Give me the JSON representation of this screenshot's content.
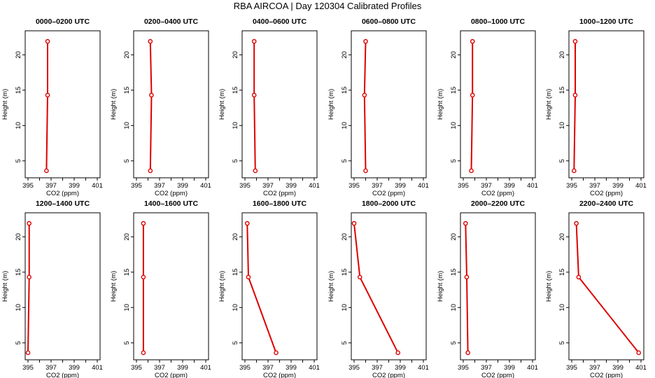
{
  "title": "RBA AIRCOA |  Day 120304  Calibrated Profiles",
  "colors": {
    "series": "#dd0000",
    "axis": "#000000"
  },
  "chart_data": [
    {
      "type": "line",
      "title": "0000–0200 UTC",
      "xlabel": "CO2 (ppm)",
      "ylabel": "Height (m)",
      "xlim": [
        395,
        401
      ],
      "ylim": [
        3,
        23
      ],
      "xticks": [
        395,
        397,
        399,
        401
      ],
      "yticks": [
        5,
        10,
        15,
        20
      ],
      "x": [
        396.6,
        396.7,
        396.7
      ],
      "y": [
        3.6,
        14.3,
        21.9
      ]
    },
    {
      "type": "line",
      "title": "0200–0400 UTC",
      "xlabel": "CO2 (ppm)",
      "ylabel": "Height (m)",
      "xlim": [
        395,
        401
      ],
      "ylim": [
        3,
        23
      ],
      "xticks": [
        395,
        397,
        399,
        401
      ],
      "yticks": [
        5,
        10,
        15,
        20
      ],
      "x": [
        396.2,
        396.3,
        396.2
      ],
      "y": [
        3.6,
        14.3,
        21.9
      ]
    },
    {
      "type": "line",
      "title": "0400–0600 UTC",
      "xlabel": "CO2 (ppm)",
      "ylabel": "Height (m)",
      "xlim": [
        395,
        401
      ],
      "ylim": [
        3,
        23
      ],
      "xticks": [
        395,
        397,
        399,
        401
      ],
      "yticks": [
        5,
        10,
        15,
        20
      ],
      "x": [
        395.9,
        395.8,
        395.8
      ],
      "y": [
        3.6,
        14.3,
        21.9
      ]
    },
    {
      "type": "line",
      "title": "0600–0800 UTC",
      "xlabel": "CO2 (ppm)",
      "ylabel": "Height (m)",
      "xlim": [
        395,
        401
      ],
      "ylim": [
        3,
        23
      ],
      "xticks": [
        395,
        397,
        399,
        401
      ],
      "yticks": [
        5,
        10,
        15,
        20
      ],
      "x": [
        396.0,
        395.9,
        396.0
      ],
      "y": [
        3.6,
        14.3,
        21.9
      ]
    },
    {
      "type": "line",
      "title": "0800–1000 UTC",
      "xlabel": "CO2 (ppm)",
      "ylabel": "Height (m)",
      "xlim": [
        395,
        401
      ],
      "ylim": [
        3,
        23
      ],
      "xticks": [
        395,
        397,
        399,
        401
      ],
      "yticks": [
        5,
        10,
        15,
        20
      ],
      "x": [
        395.7,
        395.8,
        395.8
      ],
      "y": [
        3.6,
        14.3,
        21.9
      ]
    },
    {
      "type": "line",
      "title": "1000–1200 UTC",
      "xlabel": "CO2 (ppm)",
      "ylabel": "Height (m)",
      "xlim": [
        395,
        401
      ],
      "ylim": [
        3,
        23
      ],
      "xticks": [
        395,
        397,
        399,
        401
      ],
      "yticks": [
        5,
        10,
        15,
        20
      ],
      "x": [
        395.2,
        395.3,
        395.3
      ],
      "y": [
        3.6,
        14.3,
        21.9
      ]
    },
    {
      "type": "line",
      "title": "1200–1400 UTC",
      "xlabel": "CO2 (ppm)",
      "ylabel": "Height (m)",
      "xlim": [
        395,
        401
      ],
      "ylim": [
        3,
        23
      ],
      "xticks": [
        395,
        397,
        399,
        401
      ],
      "yticks": [
        5,
        10,
        15,
        20
      ],
      "x": [
        395.0,
        395.1,
        395.1
      ],
      "y": [
        3.6,
        14.3,
        21.9
      ]
    },
    {
      "type": "line",
      "title": "1400–1600 UTC",
      "xlabel": "CO2 (ppm)",
      "ylabel": "Height (m)",
      "xlim": [
        395,
        401
      ],
      "ylim": [
        3,
        23
      ],
      "xticks": [
        395,
        397,
        399,
        401
      ],
      "yticks": [
        5,
        10,
        15,
        20
      ],
      "x": [
        395.6,
        395.6,
        395.6
      ],
      "y": [
        3.6,
        14.3,
        21.9
      ]
    },
    {
      "type": "line",
      "title": "1600–1800 UTC",
      "xlabel": "CO2 (ppm)",
      "ylabel": "Height (m)",
      "xlim": [
        395,
        401
      ],
      "ylim": [
        3,
        23
      ],
      "xticks": [
        395,
        397,
        399,
        401
      ],
      "yticks": [
        5,
        10,
        15,
        20
      ],
      "x": [
        397.7,
        395.3,
        395.2
      ],
      "y": [
        3.6,
        14.3,
        21.9
      ]
    },
    {
      "type": "line",
      "title": "1800–2000 UTC",
      "xlabel": "CO2 (ppm)",
      "ylabel": "Height (m)",
      "xlim": [
        395,
        401
      ],
      "ylim": [
        3,
        23
      ],
      "xticks": [
        395,
        397,
        399,
        401
      ],
      "yticks": [
        5,
        10,
        15,
        20
      ],
      "x": [
        398.8,
        395.5,
        395.0
      ],
      "y": [
        3.6,
        14.3,
        21.9
      ]
    },
    {
      "type": "line",
      "title": "2000–2200 UTC",
      "xlabel": "CO2 (ppm)",
      "ylabel": "Height (m)",
      "xlim": [
        395,
        401
      ],
      "ylim": [
        3,
        23
      ],
      "xticks": [
        395,
        397,
        399,
        401
      ],
      "yticks": [
        5,
        10,
        15,
        20
      ],
      "x": [
        395.4,
        395.3,
        395.2
      ],
      "y": [
        3.6,
        14.3,
        21.9
      ]
    },
    {
      "type": "line",
      "title": "2200–2400 UTC",
      "xlabel": "CO2 (ppm)",
      "ylabel": "Height (m)",
      "xlim": [
        395,
        401
      ],
      "ylim": [
        3,
        23
      ],
      "xticks": [
        395,
        397,
        399,
        401
      ],
      "yticks": [
        5,
        10,
        15,
        20
      ],
      "x": [
        400.8,
        395.6,
        395.4
      ],
      "y": [
        3.6,
        14.3,
        21.9
      ]
    }
  ]
}
